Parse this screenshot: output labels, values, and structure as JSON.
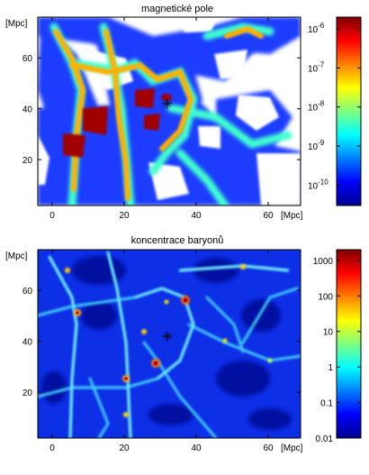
{
  "chart_data": [
    {
      "type": "heatmap",
      "title": "magnetické pole",
      "x_unit": "[Mpc]",
      "y_unit": "[Mpc]",
      "xlim": [
        -4,
        69
      ],
      "ylim": [
        2,
        76
      ],
      "xticks": [
        0,
        20,
        40,
        60
      ],
      "yticks": [
        20,
        40,
        60
      ],
      "colorbar": {
        "scale": "log",
        "range": [
          3e-11,
          2e-06
        ],
        "ticks": [
          {
            "value": 1e-06,
            "label": "10",
            "exp": "-6"
          },
          {
            "value": 1e-07,
            "label": "10",
            "exp": "-7"
          },
          {
            "value": 1e-08,
            "label": "10",
            "exp": "-8"
          },
          {
            "value": 1e-09,
            "label": "10",
            "exp": "-9"
          },
          {
            "value": 1e-10,
            "label": "10",
            "exp": "-10"
          }
        ],
        "colormap": "jet"
      },
      "marker": {
        "symbol": "+",
        "x": 32,
        "y": 42
      },
      "background_below_threshold": "#ffffff"
    },
    {
      "type": "heatmap",
      "title": "koncentrace baryonů",
      "x_unit": "[Mpc]",
      "y_unit": "[Mpc]",
      "xlim": [
        -4,
        69
      ],
      "ylim": [
        2,
        76
      ],
      "xticks": [
        0,
        20,
        40,
        60
      ],
      "yticks": [
        20,
        40,
        60
      ],
      "colorbar": {
        "scale": "log",
        "range": [
          0.01,
          2000
        ],
        "ticks": [
          {
            "value": 1000,
            "label": "1000"
          },
          {
            "value": 100,
            "label": "100"
          },
          {
            "value": 10,
            "label": "10"
          },
          {
            "value": 1,
            "label": "1"
          },
          {
            "value": 0.1,
            "label": "0.1"
          },
          {
            "value": 0.01,
            "label": "0.01"
          }
        ],
        "colormap": "jet"
      },
      "marker": {
        "symbol": "+",
        "x": 32,
        "y": 42
      }
    }
  ]
}
